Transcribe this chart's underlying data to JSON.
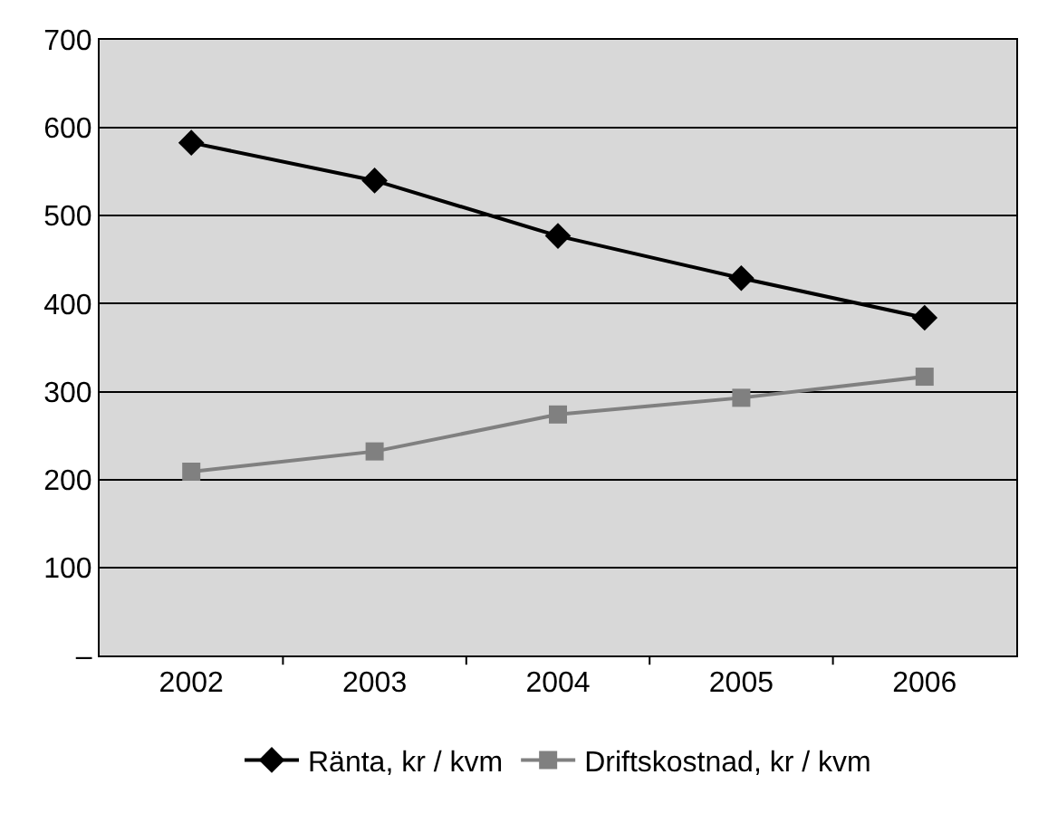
{
  "chart_data": {
    "type": "line",
    "categories": [
      "2002",
      "2003",
      "2004",
      "2005",
      "2006"
    ],
    "series": [
      {
        "name": "Ränta, kr / kvm",
        "color": "#000000",
        "marker": "diamond",
        "values": [
          583,
          540,
          477,
          429,
          384
        ]
      },
      {
        "name": "Driftskostnad, kr / kvm",
        "color": "#808080",
        "marker": "square",
        "values": [
          209,
          232,
          274,
          293,
          317
        ]
      }
    ],
    "ylim": [
      0,
      700
    ],
    "yticks": [
      {
        "value": 0,
        "label": "–"
      },
      100,
      200,
      300,
      400,
      500,
      600,
      700
    ],
    "grid": "y",
    "legend": "bottom",
    "line_style": "solid"
  }
}
